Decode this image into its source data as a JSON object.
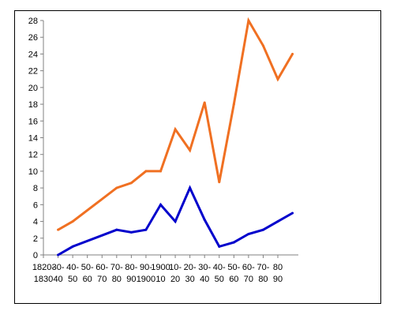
{
  "chart_data": {
    "type": "line",
    "categories": [
      [
        "1820-",
        "1830"
      ],
      [
        "30-",
        "40"
      ],
      [
        "40-",
        "50"
      ],
      [
        "50-",
        "60"
      ],
      [
        "60-",
        "70"
      ],
      [
        "70-",
        "80"
      ],
      [
        "80-",
        "90"
      ],
      [
        "90-",
        "1900"
      ],
      [
        "1900",
        "10"
      ],
      [
        "10-",
        "20"
      ],
      [
        "20-",
        "30"
      ],
      [
        "30-",
        "40"
      ],
      [
        "40-",
        "50"
      ],
      [
        "50-",
        "60"
      ],
      [
        "60-",
        "70"
      ],
      [
        "70-",
        "80"
      ],
      [
        "80",
        "90"
      ]
    ],
    "x_positions": [
      0.5,
      1,
      1.5,
      2,
      2.5,
      3,
      3.5,
      4,
      4.5,
      5,
      5.5,
      6,
      6.5,
      7,
      7.5,
      8,
      8.5
    ],
    "series": [
      {
        "color": "#F07022",
        "x": [
          1,
          1.5,
          3,
          3.5,
          4,
          4.5,
          5,
          5.5,
          6,
          6.5,
          7,
          7.5,
          8,
          8.5,
          9
        ],
        "values": [
          3,
          4,
          8,
          8.6,
          10,
          10,
          15,
          12.5,
          18.2,
          8.7,
          18,
          28,
          25,
          21,
          24
        ]
      },
      {
        "color": "#0000CC",
        "x": [
          1,
          1.5,
          3,
          3.5,
          4,
          4.5,
          5,
          5.5,
          6,
          6.5,
          7,
          7.5,
          8,
          8.5,
          9
        ],
        "values": [
          0,
          1,
          3,
          2.7,
          3,
          6,
          4,
          8,
          4.2,
          1,
          1.5,
          2.5,
          3,
          4,
          5
        ]
      }
    ],
    "ylim": [
      0,
      28
    ],
    "yticks": [
      0,
      2,
      4,
      6,
      8,
      10,
      12,
      14,
      16,
      18,
      20,
      22,
      24,
      26,
      28
    ],
    "xlim": [
      0.5,
      9.2
    ],
    "grid": false,
    "legend": "none",
    "axis_color": "#808080"
  }
}
